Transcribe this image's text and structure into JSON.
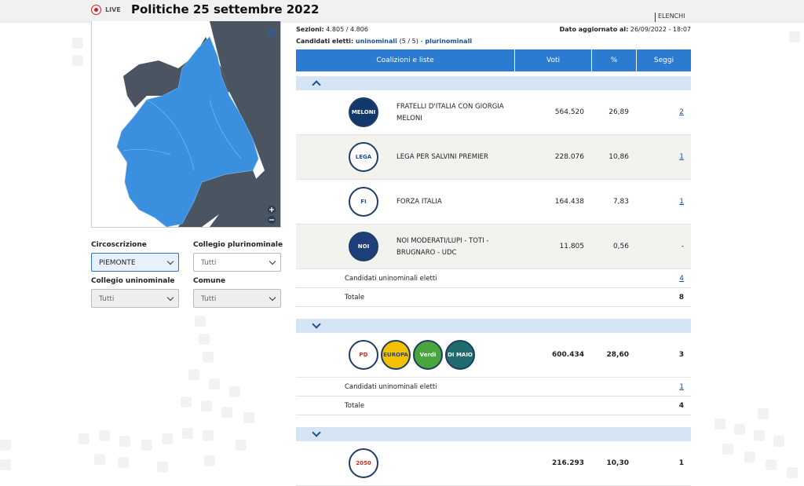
{
  "header": {
    "live": "LIVE",
    "title": "Politiche 25 settembre 2022",
    "nav": "ELENCHI"
  },
  "info": {
    "sezioni_label": "Sezioni:",
    "sezioni": "4.805 / 4.806",
    "updated_label": "Dato aggiornato al:",
    "updated": "26/09/2022 - 18:07",
    "eletti_label": "Candidati eletti:",
    "uninominali": "uninominali",
    "count": "(5 / 5)",
    "sep": "-",
    "plurinominali": "plurinominali"
  },
  "filters": [
    {
      "label": "Circoscrizione",
      "value": "PIEMONTE"
    },
    {
      "label": "Collegio plurinominale",
      "value": "Tutti"
    },
    {
      "label": "Collegio uninominale",
      "value": "Tutti"
    },
    {
      "label": "Comune",
      "value": "Tutti"
    }
  ],
  "table": {
    "columns": [
      "Coalizioni e liste",
      "Voti",
      "%",
      "Seggi"
    ],
    "groups": [
      {
        "rows": [
          {
            "logos": [
              {
                "text": "MELONI",
                "bg": "#10386b",
                "fg": "#ffffff"
              }
            ],
            "name": "FRATELLI D'ITALIA CON GIORGIA MELONI",
            "voti": "564.520",
            "pct": "26,89",
            "seggi": "2"
          },
          {
            "logos": [
              {
                "text": "LEGA",
                "bg": "#ffffff",
                "fg": "#1d4f9c"
              }
            ],
            "name": "LEGA PER SALVINI PREMIER",
            "voti": "228.076",
            "pct": "10,86",
            "seggi": "1"
          },
          {
            "logos": [
              {
                "text": "FI",
                "bg": "#ffffff",
                "fg": "#1a4fa0"
              }
            ],
            "name": "FORZA ITALIA",
            "voti": "164.438",
            "pct": "7,83",
            "seggi": "1"
          },
          {
            "logos": [
              {
                "text": "NOI",
                "bg": "#1d3f7a",
                "fg": "#ffffff"
              }
            ],
            "name": "NOI MODERATI/LUPI - TOTI - BRUGNARO - UDC",
            "voti": "11.805",
            "pct": "0,56",
            "seggi": "-"
          }
        ],
        "uninominali": {
          "label": "Candidati uninominali eletti",
          "value": "4"
        },
        "totale": {
          "label": "Totale",
          "value": "8"
        }
      },
      {
        "rows": [
          {
            "logos": [
              {
                "text": "PD",
                "bg": "#ffffff",
                "fg": "#d52b1e"
              },
              {
                "text": "EUROPA",
                "bg": "#f4c000",
                "fg": "#1f4a8f"
              },
              {
                "text": "Verdi",
                "bg": "#4aa63c",
                "fg": "#ffffff"
              },
              {
                "text": "DI MAIO",
                "bg": "#1f6b6e",
                "fg": "#ffffff"
              }
            ],
            "name": "",
            "voti": "600.434",
            "pct": "28,60",
            "seggi": "3"
          }
        ],
        "uninominali": {
          "label": "Candidati uninominali eletti",
          "value": "1"
        },
        "totale": {
          "label": "Totale",
          "value": "4"
        }
      },
      {
        "rows": [
          {
            "logos": [
              {
                "text": "2050",
                "bg": "#ffffff",
                "fg": "#d52b1e"
              }
            ],
            "name": "",
            "voti": "216.293",
            "pct": "10,30",
            "seggi": "1"
          }
        ]
      }
    ]
  }
}
